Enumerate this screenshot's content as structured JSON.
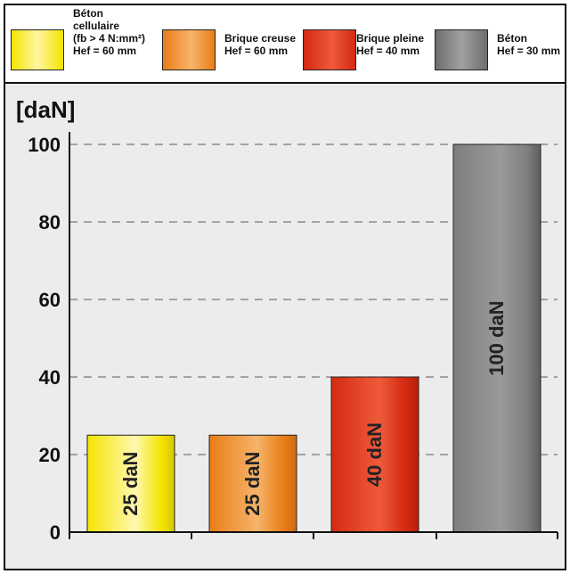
{
  "chart_data": {
    "type": "bar",
    "unit_label": "[daN]",
    "categories": [
      "Béton cellulaire",
      "Brique creuse",
      "Brique pleine",
      "Béton"
    ],
    "values": [
      25,
      25,
      40,
      100
    ],
    "data_labels": [
      "25 daN",
      "25 daN",
      "40 daN",
      "100 daN"
    ],
    "ylim": [
      0,
      100
    ],
    "yticks": [
      0,
      20,
      40,
      60,
      80,
      100
    ],
    "ytick_labels": [
      "0",
      "20",
      "40",
      "60",
      "80",
      "100"
    ],
    "grid": "dashed horizontal",
    "legend_placement": "top",
    "colors": [
      {
        "light": "#fff8b0",
        "base": "#f4e400",
        "dark": "#d8c600"
      },
      {
        "light": "#f6b46a",
        "base": "#e97d18",
        "dark": "#cf6a10"
      },
      {
        "light": "#ee5a3a",
        "base": "#d42a12",
        "dark": "#b8200c"
      },
      {
        "light": "#9a9a9a",
        "base": "#7e7e7e",
        "dark": "#5e5e5e"
      }
    ]
  },
  "legend": [
    {
      "lines": [
        "Béton",
        "cellulaire",
        "(fb > 4 N:mm²)",
        "Hef = 60 mm"
      ]
    },
    {
      "lines": [
        "Brique creuse",
        "Hef = 60 mm"
      ]
    },
    {
      "lines": [
        "Brique pleine",
        "Hef = 40 mm"
      ]
    },
    {
      "lines": [
        "Béton",
        "Hef = 30 mm"
      ]
    }
  ]
}
